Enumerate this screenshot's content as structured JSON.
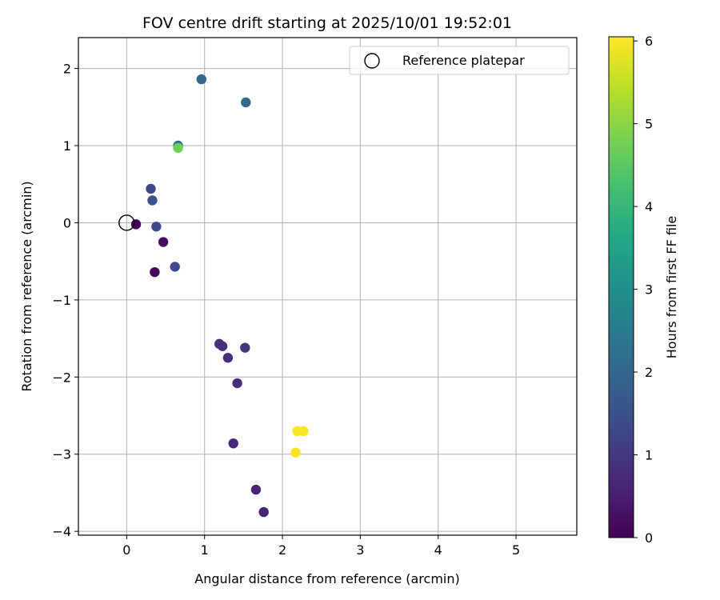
{
  "chart_data": {
    "type": "scatter",
    "title": "FOV centre drift starting at 2025/10/01 19:52:01",
    "xlabel": "Angular distance from reference (arcmin)",
    "ylabel": "Rotation from reference (arcmin)",
    "xlim": [
      -0.62,
      5.78
    ],
    "ylim": [
      -4.05,
      2.4
    ],
    "xticks": [
      0,
      1,
      2,
      3,
      4,
      5
    ],
    "yticks": [
      -4,
      -3,
      -2,
      -1,
      0,
      1,
      2
    ],
    "xtick_labels": [
      "0",
      "1",
      "2",
      "3",
      "4",
      "5"
    ],
    "ytick_labels": [
      "−4",
      "−3",
      "−2",
      "−1",
      "0",
      "1",
      "2"
    ],
    "grid": true,
    "legend": {
      "location": "top-right",
      "entries": [
        "Reference platepar"
      ]
    },
    "reference_point": {
      "x": 0.0,
      "y": 0.0,
      "label": "Reference platepar"
    },
    "colorbar": {
      "label": "Hours from first FF file",
      "range": [
        0,
        6.05
      ],
      "ticks": [
        0,
        1,
        2,
        3,
        4,
        5,
        6
      ],
      "tick_labels": [
        "0",
        "1",
        "2",
        "3",
        "4",
        "5",
        "6"
      ],
      "colormap": "viridis"
    },
    "points": [
      {
        "x": 0.12,
        "y": -0.02,
        "hours": 0.05
      },
      {
        "x": 0.36,
        "y": -0.64,
        "hours": 0.1
      },
      {
        "x": 0.47,
        "y": -0.25,
        "hours": 0.2
      },
      {
        "x": 1.76,
        "y": -3.75,
        "hours": 0.6
      },
      {
        "x": 1.66,
        "y": -3.46,
        "hours": 0.65
      },
      {
        "x": 1.37,
        "y": -2.86,
        "hours": 0.7
      },
      {
        "x": 1.42,
        "y": -2.08,
        "hours": 0.75
      },
      {
        "x": 1.3,
        "y": -1.75,
        "hours": 0.8
      },
      {
        "x": 1.19,
        "y": -1.57,
        "hours": 0.85
      },
      {
        "x": 1.23,
        "y": -1.6,
        "hours": 0.85
      },
      {
        "x": 1.52,
        "y": -1.62,
        "hours": 0.9
      },
      {
        "x": 0.62,
        "y": -0.57,
        "hours": 1.3
      },
      {
        "x": 0.38,
        "y": -0.05,
        "hours": 1.35
      },
      {
        "x": 0.31,
        "y": 0.44,
        "hours": 1.4
      },
      {
        "x": 0.33,
        "y": 0.29,
        "hours": 1.5
      },
      {
        "x": 0.96,
        "y": 1.86,
        "hours": 2.0
      },
      {
        "x": 1.53,
        "y": 1.56,
        "hours": 2.1
      },
      {
        "x": 0.66,
        "y": 1.0,
        "hours": 2.25
      },
      {
        "x": 0.66,
        "y": 0.97,
        "hours": 4.7
      },
      {
        "x": 2.19,
        "y": -2.7,
        "hours": 6.0
      },
      {
        "x": 2.27,
        "y": -2.7,
        "hours": 6.0
      },
      {
        "x": 2.17,
        "y": -2.98,
        "hours": 6.0
      }
    ]
  }
}
